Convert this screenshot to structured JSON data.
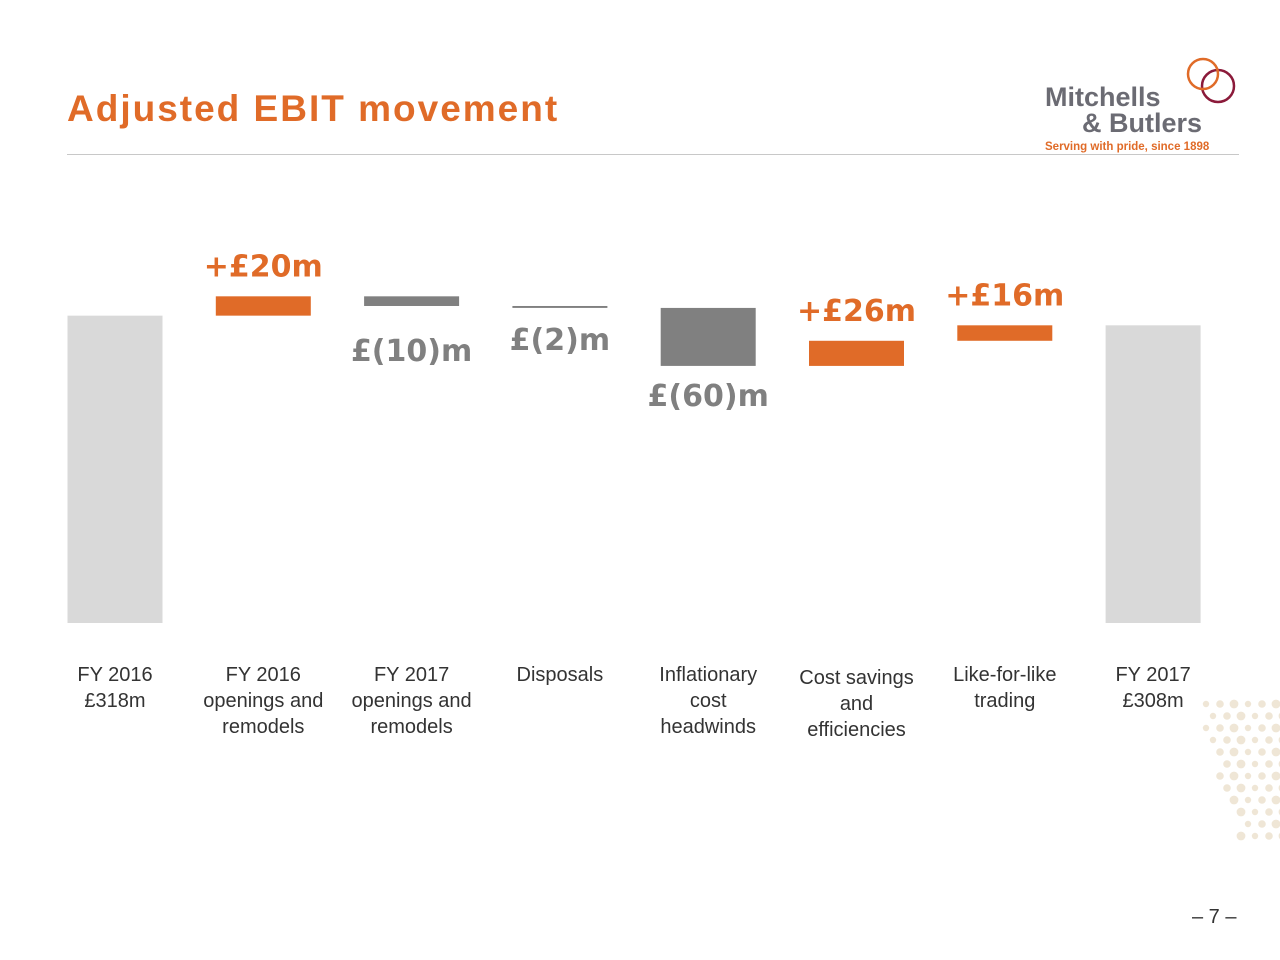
{
  "slide": {
    "title": "Adjusted EBIT movement",
    "page_number": "– 7 –"
  },
  "logo": {
    "line1": "Mitchells",
    "line2": "& Butlers",
    "tagline": "Serving with pride, since 1898"
  },
  "colors": {
    "accent": "#e06b28",
    "total_bar": "#d9d9d9",
    "negative_bar": "#808080",
    "logo_text": "#6b6b73",
    "logo_ring": "#8b1a3a"
  },
  "chart_data": {
    "type": "waterfall",
    "title": "Adjusted EBIT movement",
    "units": "£m",
    "ylim": [
      0,
      400
    ],
    "steps": [
      {
        "category": [
          "FY 2016",
          "£318m"
        ],
        "kind": "total",
        "value": 318,
        "label": ""
      },
      {
        "category": [
          "FY 2016",
          "openings and",
          "remodels"
        ],
        "kind": "increase",
        "value": 20,
        "label": "+£20m"
      },
      {
        "category": [
          "FY 2017",
          "openings and",
          "remodels"
        ],
        "kind": "decrease",
        "value": -10,
        "label": "£(10)m"
      },
      {
        "category": [
          "Disposals"
        ],
        "kind": "decrease",
        "value": -2,
        "label": "£(2)m"
      },
      {
        "category": [
          "Inflationary",
          "cost",
          "headwinds"
        ],
        "kind": "decrease",
        "value": -60,
        "label": "£(60)m"
      },
      {
        "category": [
          "Cost savings",
          "and",
          "efficiencies"
        ],
        "kind": "increase",
        "value": 26,
        "label": "+£26m"
      },
      {
        "category": [
          "Like-for-like",
          "trading"
        ],
        "kind": "increase",
        "value": 16,
        "label": "+£16m"
      },
      {
        "category": [
          "FY 2017",
          "£308m"
        ],
        "kind": "total",
        "value": 308,
        "label": ""
      }
    ]
  }
}
